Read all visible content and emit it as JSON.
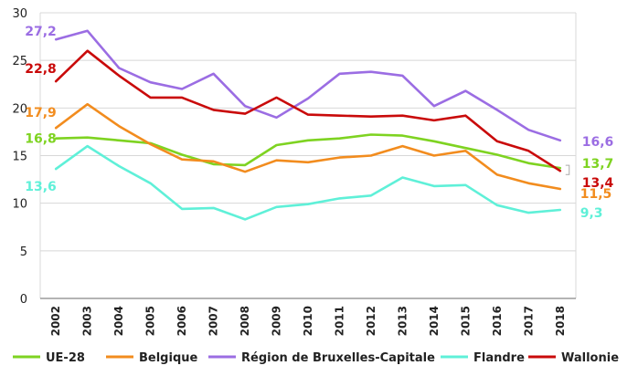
{
  "chart_data": {
    "type": "line",
    "title": "",
    "xlabel": "",
    "ylabel": "",
    "x": [
      "2002",
      "2003",
      "2004",
      "2005",
      "2006",
      "2007",
      "2008",
      "2009",
      "2010",
      "2011",
      "2012",
      "2013",
      "2014",
      "2015",
      "2016",
      "2017",
      "2018"
    ],
    "ylim": [
      0,
      30
    ],
    "yticks": [
      "0",
      "5",
      "10",
      "15",
      "20",
      "25",
      "30"
    ],
    "grid": true,
    "legend_position": "bottom",
    "series": [
      {
        "name": "UE-28",
        "color": "#7ed321",
        "values": [
          16.8,
          16.9,
          16.6,
          16.3,
          15.1,
          14.1,
          14.0,
          16.1,
          16.6,
          16.8,
          17.2,
          17.1,
          16.5,
          15.8,
          15.1,
          14.2,
          13.7
        ],
        "start_label": "16,8",
        "end_label": "13,7"
      },
      {
        "name": "Belgique",
        "color": "#f28c1e",
        "values": [
          17.9,
          20.4,
          18.1,
          16.2,
          14.6,
          14.4,
          13.3,
          14.5,
          14.3,
          14.8,
          15.0,
          16.0,
          15.0,
          15.5,
          13.0,
          12.1,
          11.5
        ],
        "start_label": "17,9",
        "end_label": "11,5"
      },
      {
        "name": "Région de Bruxelles-Capitale",
        "color": "#9b6de3",
        "values": [
          27.2,
          28.1,
          24.2,
          22.7,
          22.0,
          23.6,
          20.2,
          19.0,
          21.0,
          23.6,
          23.8,
          23.4,
          20.2,
          21.8,
          19.8,
          17.7,
          16.6
        ],
        "start_label": "27,2",
        "end_label": "16,6"
      },
      {
        "name": "Flandre",
        "color": "#5ff0d8",
        "values": [
          13.6,
          16.0,
          13.9,
          12.1,
          9.4,
          9.5,
          8.3,
          9.6,
          9.9,
          10.5,
          10.8,
          12.7,
          11.8,
          11.9,
          9.8,
          9.0,
          9.3
        ],
        "start_label": "13,6",
        "end_label": "9,3"
      },
      {
        "name": "Wallonie",
        "color": "#c90a0a",
        "values": [
          22.8,
          26.0,
          23.4,
          21.1,
          21.1,
          19.8,
          19.4,
          21.1,
          19.3,
          19.2,
          19.1,
          19.2,
          18.7,
          19.2,
          16.5,
          15.5,
          13.4
        ],
        "start_label": "22,8",
        "end_label": "13,4"
      }
    ]
  }
}
